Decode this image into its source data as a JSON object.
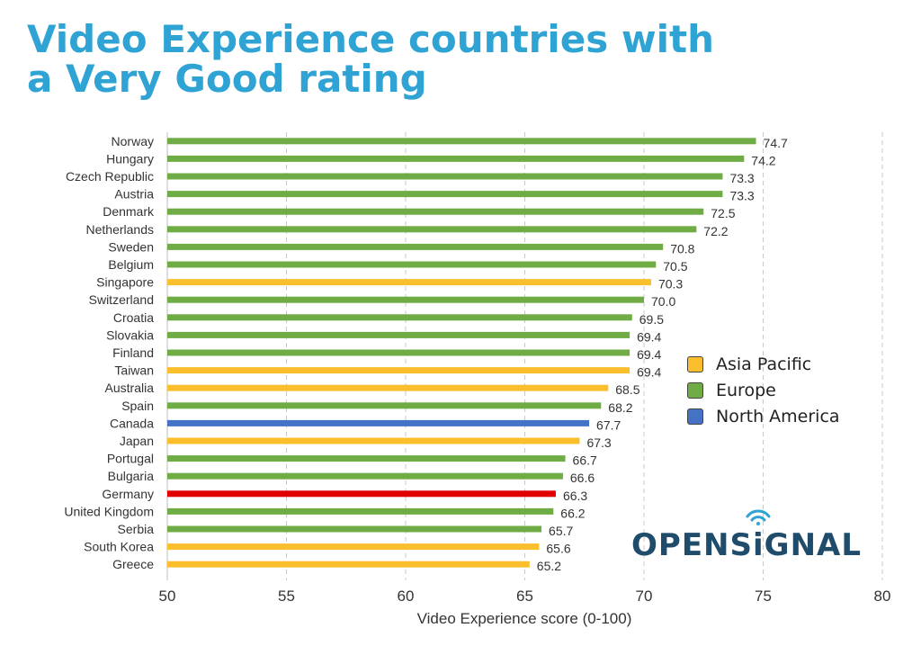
{
  "title_lines": [
    "Video Experience countries with",
    "a Very Good rating"
  ],
  "legend": [
    {
      "label": "Asia Pacific",
      "color": "#fbbf2d"
    },
    {
      "label": "Europe",
      "color": "#6fac45"
    },
    {
      "label": "North America",
      "color": "#4472c4"
    }
  ],
  "logo": {
    "before": "OPENS",
    "i": "i",
    "after": "GNAL",
    "icon": "wifi-signal-icon"
  },
  "chart_data": {
    "type": "bar",
    "orientation": "horizontal",
    "categories": [
      "Norway",
      "Hungary",
      "Czech Republic",
      "Austria",
      "Denmark",
      "Netherlands",
      "Sweden",
      "Belgium",
      "Singapore",
      "Switzerland",
      "Croatia",
      "Slovakia",
      "Finland",
      "Taiwan",
      "Australia",
      "Spain",
      "Canada",
      "Japan",
      "Portugal",
      "Bulgaria",
      "Germany",
      "United Kingdom",
      "Serbia",
      "South Korea",
      "Greece"
    ],
    "values": [
      74.7,
      74.2,
      73.3,
      73.3,
      72.5,
      72.2,
      70.8,
      70.5,
      70.3,
      70.0,
      69.5,
      69.4,
      69.4,
      69.4,
      68.5,
      68.2,
      67.7,
      67.3,
      66.7,
      66.6,
      66.3,
      66.2,
      65.7,
      65.6,
      65.2
    ],
    "value_labels": [
      "74.7",
      "74.2",
      "73.3",
      "73.3",
      "72.5",
      "72.2",
      "70.8",
      "70.5",
      "70.3",
      "70.0",
      "69.5",
      "69.4",
      "69.4",
      "69.4",
      "68.5",
      "68.2",
      "67.7",
      "67.3",
      "66.7",
      "66.6",
      "66.3",
      "66.2",
      "65.7",
      "65.6",
      "65.2"
    ],
    "region": [
      "Europe",
      "Europe",
      "Europe",
      "Europe",
      "Europe",
      "Europe",
      "Europe",
      "Europe",
      "Asia Pacific",
      "Europe",
      "Europe",
      "Europe",
      "Europe",
      "Asia Pacific",
      "Asia Pacific",
      "Europe",
      "North America",
      "Asia Pacific",
      "Europe",
      "Europe",
      "Europe",
      "Europe",
      "Europe",
      "Asia Pacific",
      "Asia Pacific"
    ],
    "highlight": {
      "category": "Germany",
      "color": "#e00000"
    },
    "xlabel": "Video Experience score (0-100)",
    "xlim": [
      50,
      80
    ],
    "xticks": [
      50,
      55,
      60,
      65,
      70,
      75,
      80
    ],
    "grid": "vertical dashed",
    "legend_position": "right"
  }
}
